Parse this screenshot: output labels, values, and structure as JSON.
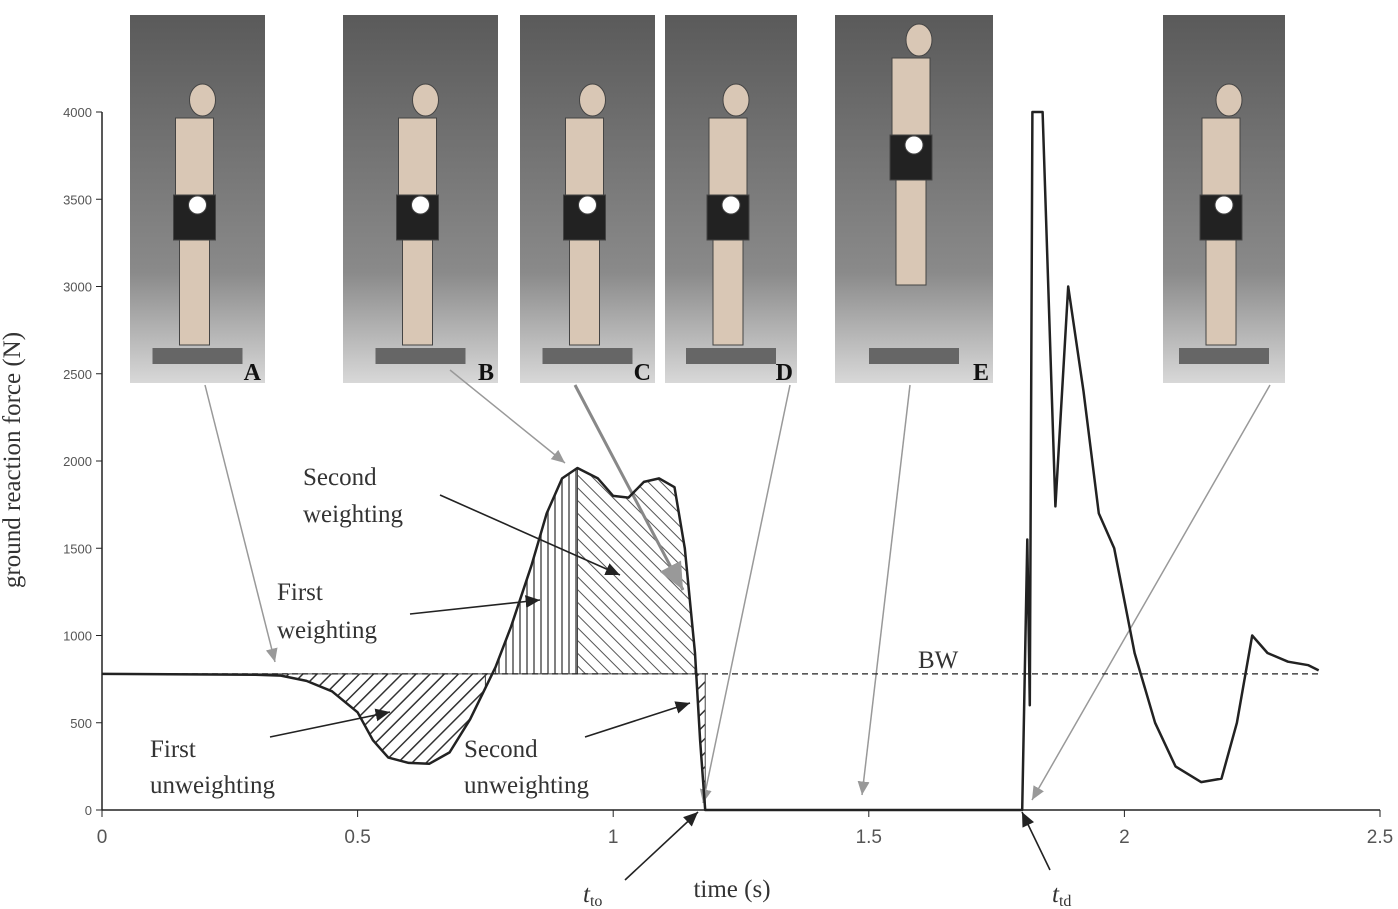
{
  "chart_data": {
    "type": "line",
    "xlabel": "time (s)",
    "ylabel": "ground reaction force (N)",
    "xlim": [
      0,
      2.5
    ],
    "ylim": [
      0,
      4000
    ],
    "xticks": [
      0,
      0.5,
      1,
      1.5,
      2,
      2.5
    ],
    "yticks": [
      0,
      500,
      1000,
      1500,
      2000,
      2500,
      3000,
      3500,
      4000
    ],
    "series": [
      {
        "color": "#222222",
        "x": [
          0,
          0.3,
          0.35,
          0.4,
          0.45,
          0.5,
          0.53,
          0.56,
          0.6,
          0.64,
          0.68,
          0.72,
          0.75,
          0.77,
          0.8,
          0.84,
          0.87,
          0.9,
          0.93,
          0.97,
          1.0,
          1.03,
          1.06,
          1.09,
          1.12,
          1.14,
          1.16,
          1.17,
          1.18,
          1.8,
          1.81,
          1.815,
          1.82,
          1.84,
          1.865,
          1.89,
          1.92,
          1.95,
          1.98,
          2.02,
          2.06,
          2.1,
          2.15,
          2.19,
          2.22,
          2.25,
          2.28,
          2.32,
          2.36,
          2.38
        ],
        "values": [
          780,
          775,
          770,
          740,
          680,
          560,
          400,
          300,
          270,
          265,
          330,
          520,
          700,
          820,
          1050,
          1400,
          1700,
          1900,
          1960,
          1900,
          1800,
          1790,
          1880,
          1900,
          1850,
          1500,
          900,
          400,
          0,
          0,
          1550,
          600,
          4000,
          4000,
          1740,
          3000,
          2400,
          1700,
          1500,
          900,
          500,
          250,
          160,
          180,
          500,
          1000,
          900,
          850,
          830,
          800
        ]
      }
    ],
    "body_weight": {
      "label": "BW",
      "value": 780
    },
    "annotations": {
      "first_unweighting": [
        "First",
        "unweighting"
      ],
      "first_weighting": [
        "First",
        "weighting"
      ],
      "second_weighting": [
        "Second",
        "weighting"
      ],
      "second_unweighting": [
        "Second",
        "unweighting"
      ],
      "t_to": {
        "text": "t",
        "sub": "to"
      },
      "t_td": {
        "text": "t",
        "sub": "td"
      }
    },
    "photo_labels": [
      "A",
      "B",
      "C",
      "D",
      "E"
    ]
  }
}
